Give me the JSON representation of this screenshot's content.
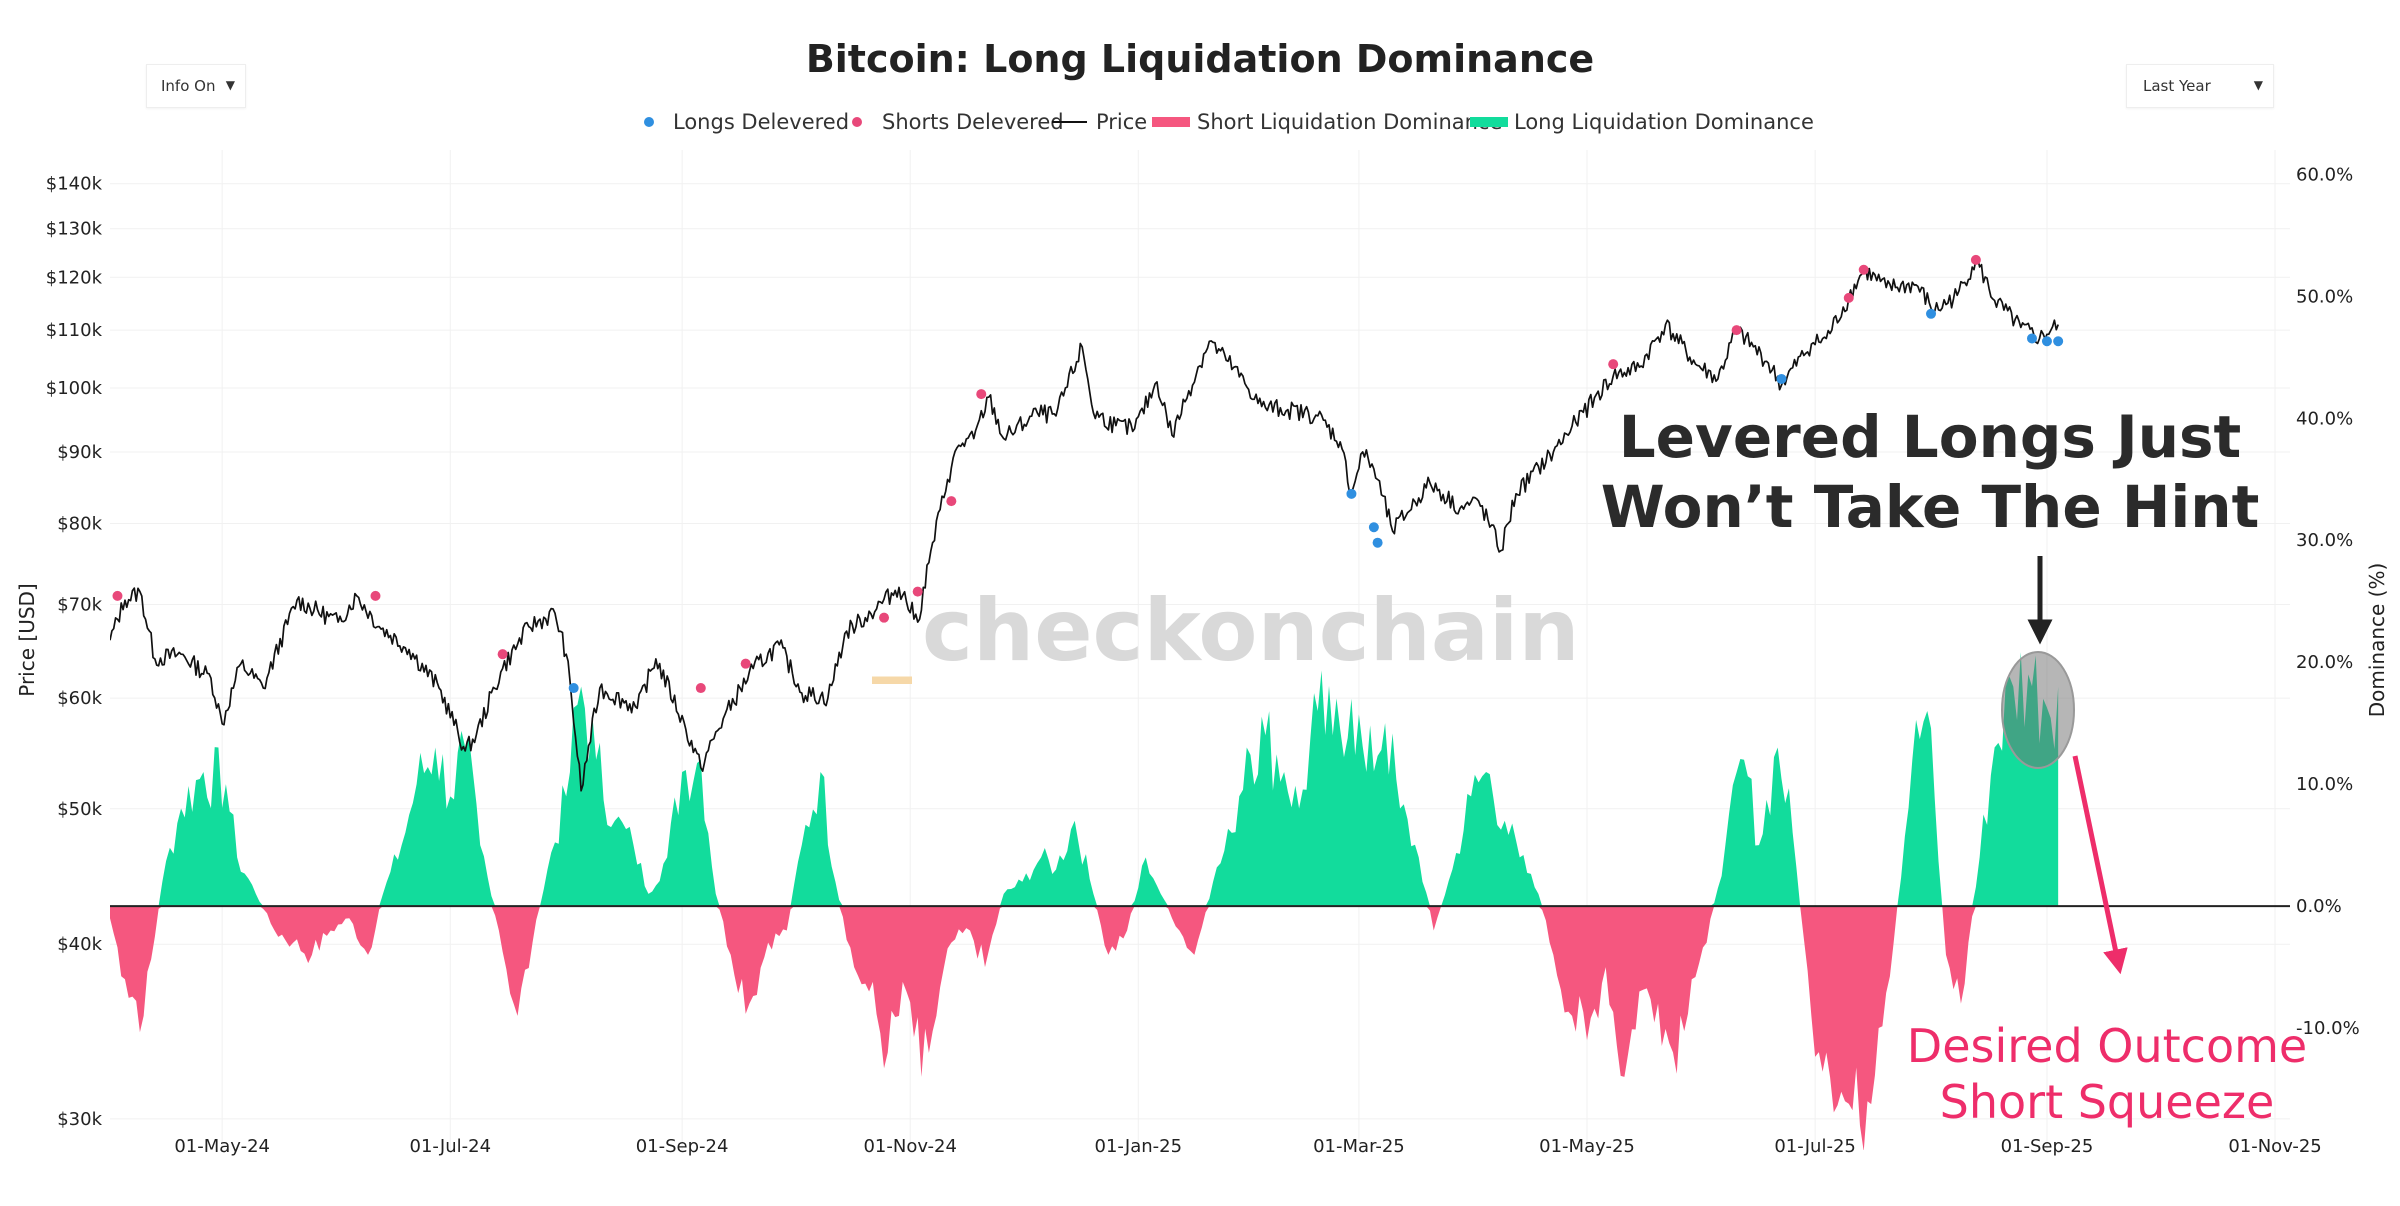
{
  "controls": {
    "info_toggle": "Info On",
    "range_select": "Last Year",
    "dropdown_arrow": "▼"
  },
  "chart_data": {
    "type": "line",
    "title": "Bitcoin: Long Liquidation Dominance",
    "legend": [
      {
        "label": "Longs Delevered",
        "kind": "marker",
        "color": "#2f8fe0"
      },
      {
        "label": "Shorts Delevered",
        "kind": "marker",
        "color": "#e8487a"
      },
      {
        "label": "Price",
        "kind": "line",
        "color": "#111111"
      },
      {
        "label": "Short Liquidation Dominance",
        "kind": "area",
        "color": "#f5577f"
      },
      {
        "label": "Long Liquidation Dominance",
        "kind": "area",
        "color": "#12dc9c"
      }
    ],
    "x_axis": {
      "range": [
        "2024-04-01",
        "2025-11-05"
      ],
      "ticks": [
        {
          "date": "2024-05-01",
          "label": "01-May-24"
        },
        {
          "date": "2024-07-01",
          "label": "01-Jul-24"
        },
        {
          "date": "2024-09-01",
          "label": "01-Sep-24"
        },
        {
          "date": "2024-11-01",
          "label": "01-Nov-24"
        },
        {
          "date": "2025-01-01",
          "label": "01-Jan-25"
        },
        {
          "date": "2025-03-01",
          "label": "01-Mar-25"
        },
        {
          "date": "2025-05-01",
          "label": "01-May-25"
        },
        {
          "date": "2025-07-01",
          "label": "01-Jul-25"
        },
        {
          "date": "2025-09-01",
          "label": "01-Sep-25"
        },
        {
          "date": "2025-11-01",
          "label": "01-Nov-25"
        }
      ]
    },
    "y_left": {
      "label": "Price [USD]",
      "scale": "log",
      "range": [
        28500,
        148000
      ],
      "ticks": [
        {
          "value": 30000,
          "label": "$30k"
        },
        {
          "value": 40000,
          "label": "$40k"
        },
        {
          "value": 50000,
          "label": "$50k"
        },
        {
          "value": 60000,
          "label": "$60k"
        },
        {
          "value": 70000,
          "label": "$70k"
        },
        {
          "value": 80000,
          "label": "$80k"
        },
        {
          "value": 90000,
          "label": "$90k"
        },
        {
          "value": 100000,
          "label": "$100k"
        },
        {
          "value": 110000,
          "label": "$110k"
        },
        {
          "value": 120000,
          "label": "$120k"
        },
        {
          "value": 130000,
          "label": "$130k"
        },
        {
          "value": 140000,
          "label": "$140k"
        }
      ]
    },
    "y_right": {
      "label": "Dominance (%)",
      "scale": "linear",
      "range": [
        -20,
        62
      ],
      "ticks": [
        {
          "value": 60,
          "label": "60.0%"
        },
        {
          "value": 50,
          "label": "50.0%"
        },
        {
          "value": 40,
          "label": "40.0%"
        },
        {
          "value": 30,
          "label": "30.0%"
        },
        {
          "value": 20,
          "label": "20.0%"
        },
        {
          "value": 10,
          "label": "10.0%"
        },
        {
          "value": 0,
          "label": "0.0%"
        },
        {
          "value": -10,
          "label": "-10.0%"
        }
      ]
    },
    "price_series": [
      [
        "2024-04-01",
        66000
      ],
      [
        "2024-04-05",
        70500
      ],
      [
        "2024-04-09",
        71500
      ],
      [
        "2024-04-13",
        64000
      ],
      [
        "2024-04-20",
        64500
      ],
      [
        "2024-04-28",
        62000
      ],
      [
        "2024-05-01",
        57500
      ],
      [
        "2024-05-06",
        63500
      ],
      [
        "2024-05-12",
        61000
      ],
      [
        "2024-05-21",
        70500
      ],
      [
        "2024-06-01",
        68000
      ],
      [
        "2024-06-06",
        71000
      ],
      [
        "2024-06-12",
        67500
      ],
      [
        "2024-06-20",
        65000
      ],
      [
        "2024-06-28",
        61000
      ],
      [
        "2024-07-05",
        55000
      ],
      [
        "2024-07-08",
        56500
      ],
      [
        "2024-07-15",
        63000
      ],
      [
        "2024-07-22",
        67500
      ],
      [
        "2024-07-29",
        69000
      ],
      [
        "2024-08-01",
        64500
      ],
      [
        "2024-08-05",
        51500
      ],
      [
        "2024-08-10",
        61000
      ],
      [
        "2024-08-20",
        59000
      ],
      [
        "2024-08-25",
        64000
      ],
      [
        "2024-09-02",
        57000
      ],
      [
        "2024-09-06",
        53500
      ],
      [
        "2024-09-12",
        58000
      ],
      [
        "2024-09-20",
        63000
      ],
      [
        "2024-09-27",
        65500
      ],
      [
        "2024-10-03",
        60500
      ],
      [
        "2024-10-10",
        60000
      ],
      [
        "2024-10-15",
        67000
      ],
      [
        "2024-10-20",
        68500
      ],
      [
        "2024-10-29",
        72000
      ],
      [
        "2024-11-03",
        68000
      ],
      [
        "2024-11-06",
        75000
      ],
      [
        "2024-11-11",
        86000
      ],
      [
        "2024-11-14",
        91000
      ],
      [
        "2024-11-18",
        92000
      ],
      [
        "2024-11-22",
        98500
      ],
      [
        "2024-11-26",
        92000
      ],
      [
        "2024-12-05",
        96000
      ],
      [
        "2024-12-10",
        95500
      ],
      [
        "2024-12-17",
        107000
      ],
      [
        "2024-12-20",
        96000
      ],
      [
        "2024-12-26",
        94000
      ],
      [
        "2024-12-31",
        93500
      ],
      [
        "2025-01-06",
        101000
      ],
      [
        "2025-01-10",
        92500
      ],
      [
        "2025-01-20",
        108000
      ],
      [
        "2025-01-25",
        104500
      ],
      [
        "2025-02-03",
        97000
      ],
      [
        "2025-02-10",
        96500
      ],
      [
        "2025-02-18",
        95500
      ],
      [
        "2025-02-24",
        91500
      ],
      [
        "2025-02-27",
        84000
      ],
      [
        "2025-03-02",
        90000
      ],
      [
        "2025-03-05",
        87500
      ],
      [
        "2025-03-10",
        79000
      ],
      [
        "2025-03-20",
        85500
      ],
      [
        "2025-03-28",
        82000
      ],
      [
        "2025-04-02",
        83000
      ],
      [
        "2025-04-08",
        76500
      ],
      [
        "2025-04-12",
        84000
      ],
      [
        "2025-04-22",
        90000
      ],
      [
        "2025-04-28",
        94500
      ],
      [
        "2025-05-08",
        102000
      ],
      [
        "2025-05-15",
        103500
      ],
      [
        "2025-05-22",
        111000
      ],
      [
        "2025-05-30",
        104000
      ],
      [
        "2025-06-05",
        101500
      ],
      [
        "2025-06-10",
        110000
      ],
      [
        "2025-06-18",
        104500
      ],
      [
        "2025-06-22",
        100500
      ],
      [
        "2025-06-30",
        107500
      ],
      [
        "2025-07-04",
        108500
      ],
      [
        "2025-07-10",
        116000
      ],
      [
        "2025-07-14",
        121500
      ],
      [
        "2025-07-20",
        118000
      ],
      [
        "2025-07-28",
        118500
      ],
      [
        "2025-08-02",
        113500
      ],
      [
        "2025-08-08",
        116500
      ],
      [
        "2025-08-13",
        123500
      ],
      [
        "2025-08-18",
        115500
      ],
      [
        "2025-08-25",
        110500
      ],
      [
        "2025-08-30",
        108500
      ],
      [
        "2025-09-04",
        111000
      ]
    ],
    "long_liq_dominance_series": [
      [
        "2024-04-01",
        -1
      ],
      [
        "2024-04-05",
        -6
      ],
      [
        "2024-04-10",
        -9
      ],
      [
        "2024-04-15",
        2
      ],
      [
        "2024-04-20",
        8
      ],
      [
        "2024-04-26",
        11
      ],
      [
        "2024-05-02",
        10
      ],
      [
        "2024-05-05",
        4
      ],
      [
        "2024-05-10",
        1
      ],
      [
        "2024-05-15",
        -2
      ],
      [
        "2024-05-20",
        -3
      ],
      [
        "2024-05-25",
        -4
      ],
      [
        "2024-05-30",
        -2
      ],
      [
        "2024-06-04",
        -1
      ],
      [
        "2024-06-09",
        -4
      ],
      [
        "2024-06-13",
        1
      ],
      [
        "2024-06-18",
        5
      ],
      [
        "2024-06-22",
        10
      ],
      [
        "2024-06-27",
        13
      ],
      [
        "2024-07-01",
        9
      ],
      [
        "2024-07-05",
        13
      ],
      [
        "2024-07-09",
        5
      ],
      [
        "2024-07-14",
        -2
      ],
      [
        "2024-07-19",
        -9
      ],
      [
        "2024-07-23",
        -3
      ],
      [
        "2024-07-27",
        3
      ],
      [
        "2024-08-01",
        9
      ],
      [
        "2024-08-05",
        18
      ],
      [
        "2024-08-09",
        12
      ],
      [
        "2024-08-14",
        7
      ],
      [
        "2024-08-19",
        5
      ],
      [
        "2024-08-23",
        1
      ],
      [
        "2024-08-28",
        4
      ],
      [
        "2024-09-01",
        11
      ],
      [
        "2024-09-06",
        12
      ],
      [
        "2024-09-10",
        1
      ],
      [
        "2024-09-14",
        -4
      ],
      [
        "2024-09-19",
        -8
      ],
      [
        "2024-09-24",
        -3
      ],
      [
        "2024-09-29",
        -2
      ],
      [
        "2024-10-03",
        5
      ],
      [
        "2024-10-08",
        11
      ],
      [
        "2024-10-12",
        2
      ],
      [
        "2024-10-17",
        -5
      ],
      [
        "2024-10-21",
        -7
      ],
      [
        "2024-10-26",
        -12
      ],
      [
        "2024-10-31",
        -7
      ],
      [
        "2024-11-04",
        -14
      ],
      [
        "2024-11-08",
        -9
      ],
      [
        "2024-11-12",
        -3
      ],
      [
        "2024-11-17",
        -2
      ],
      [
        "2024-11-21",
        -5
      ],
      [
        "2024-11-26",
        1
      ],
      [
        "2024-12-01",
        2
      ],
      [
        "2024-12-06",
        4
      ],
      [
        "2024-12-10",
        3
      ],
      [
        "2024-12-15",
        7
      ],
      [
        "2024-12-20",
        1
      ],
      [
        "2024-12-24",
        -4
      ],
      [
        "2024-12-29",
        -2
      ],
      [
        "2025-01-03",
        4
      ],
      [
        "2025-01-07",
        1
      ],
      [
        "2025-01-12",
        -2
      ],
      [
        "2025-01-16",
        -4
      ],
      [
        "2025-01-21",
        2
      ],
      [
        "2025-01-26",
        6
      ],
      [
        "2025-01-30",
        13
      ],
      [
        "2025-02-04",
        14
      ],
      [
        "2025-02-09",
        11
      ],
      [
        "2025-02-13",
        8
      ],
      [
        "2025-02-18",
        16
      ],
      [
        "2025-02-22",
        14
      ],
      [
        "2025-02-27",
        17
      ],
      [
        "2025-03-03",
        11
      ],
      [
        "2025-03-08",
        15
      ],
      [
        "2025-03-12",
        8
      ],
      [
        "2025-03-17",
        4
      ],
      [
        "2025-03-21",
        -2
      ],
      [
        "2025-03-26",
        3
      ],
      [
        "2025-03-31",
        9
      ],
      [
        "2025-04-04",
        11
      ],
      [
        "2025-04-09",
        7
      ],
      [
        "2025-04-13",
        4
      ],
      [
        "2025-04-18",
        1
      ],
      [
        "2025-04-22",
        -4
      ],
      [
        "2025-04-27",
        -9
      ],
      [
        "2025-05-01",
        -11
      ],
      [
        "2025-05-06",
        -5
      ],
      [
        "2025-05-11",
        -14
      ],
      [
        "2025-05-15",
        -7
      ],
      [
        "2025-05-20",
        -8
      ],
      [
        "2025-05-24",
        -12
      ],
      [
        "2025-05-29",
        -6
      ],
      [
        "2025-06-02",
        -3
      ],
      [
        "2025-06-07",
        5
      ],
      [
        "2025-06-12",
        12
      ],
      [
        "2025-06-16",
        5
      ],
      [
        "2025-06-21",
        13
      ],
      [
        "2025-06-25",
        6
      ],
      [
        "2025-06-30",
        -9
      ],
      [
        "2025-07-04",
        -12
      ],
      [
        "2025-07-09",
        -16
      ],
      [
        "2025-07-13",
        -18
      ],
      [
        "2025-07-18",
        -10
      ],
      [
        "2025-07-22",
        -3
      ],
      [
        "2025-07-27",
        12
      ],
      [
        "2025-07-31",
        16
      ],
      [
        "2025-08-05",
        -4
      ],
      [
        "2025-08-09",
        -8
      ],
      [
        "2025-08-14",
        4
      ],
      [
        "2025-08-18",
        13
      ],
      [
        "2025-08-23",
        18
      ],
      [
        "2025-08-27",
        19
      ],
      [
        "2025-08-31",
        17
      ],
      [
        "2025-09-04",
        18
      ]
    ],
    "longs_delevered_markers": [
      [
        "2024-08-03",
        61000
      ],
      [
        "2025-02-27",
        84000
      ],
      [
        "2025-03-05",
        79500
      ],
      [
        "2025-03-06",
        77500
      ],
      [
        "2025-06-22",
        101500
      ],
      [
        "2025-08-01",
        113000
      ],
      [
        "2025-08-28",
        108500
      ],
      [
        "2025-09-01",
        108000
      ],
      [
        "2025-09-04",
        108000
      ]
    ],
    "shorts_delevered_markers": [
      [
        "2024-04-03",
        71000
      ],
      [
        "2024-06-11",
        71000
      ],
      [
        "2024-07-15",
        64500
      ],
      [
        "2024-09-06",
        61000
      ],
      [
        "2024-09-18",
        63500
      ],
      [
        "2024-10-25",
        68500
      ],
      [
        "2024-11-03",
        71500
      ],
      [
        "2024-11-12",
        83000
      ],
      [
        "2024-11-20",
        99000
      ],
      [
        "2025-05-08",
        104000
      ],
      [
        "2025-06-10",
        110000
      ],
      [
        "2025-07-10",
        116000
      ],
      [
        "2025-07-14",
        121500
      ],
      [
        "2025-08-13",
        123500
      ]
    ],
    "watermark": "checkonchain",
    "annotations": {
      "headline": [
        "Levered Longs Just",
        "Won’t Take The Hint"
      ],
      "outcome": [
        "Desired Outcome",
        "Short Squeeze"
      ]
    }
  }
}
